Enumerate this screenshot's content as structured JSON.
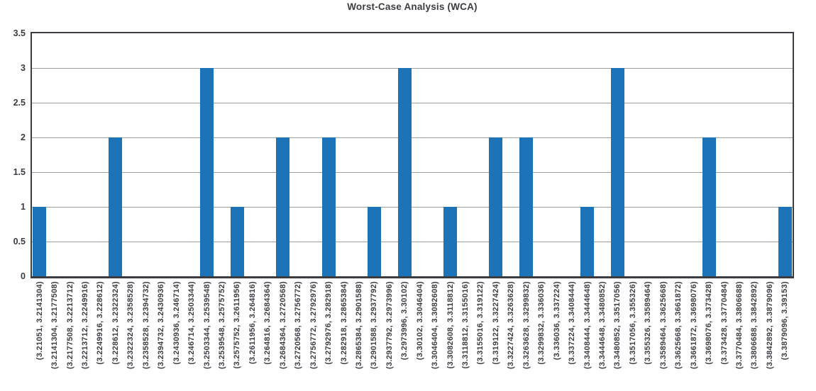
{
  "chart_data": {
    "type": "bar",
    "title": "Worst-Case Analysis (WCA)",
    "xlabel": "",
    "ylabel": "",
    "ylim": [
      0,
      3.5
    ],
    "ytick_labels": [
      "0",
      "0.5",
      "1",
      "1.5",
      "2",
      "2.5",
      "3",
      "3.5"
    ],
    "grid": true,
    "legend": "none",
    "bar_color": "#1d73b8",
    "gridline_color": "#9e9e9e",
    "axis_color": "#3b3c42",
    "text_color": "#3d3e44",
    "categories": [
      "(3.21051, 3.2141304)",
      "(3.2141304, 3.2177508)",
      "(3.2177508, 3.2213712)",
      "(3.2213712, 3.2249916)",
      "(3.2249916, 3.228612)",
      "(3.228612, 3.2322324)",
      "(3.2322324, 3.2358528)",
      "(3.2358528, 3.2394732)",
      "(3.2394732, 3.2430936)",
      "(3.2430936, 3.246714)",
      "(3.246714, 3.2503344)",
      "(3.2503344, 3.2539548)",
      "(3.2539548, 3.2575752)",
      "(3.2575752, 3.2611956)",
      "(3.2611956, 3.264816)",
      "(3.264816, 3.2684364)",
      "(3.2684364, 3.2720568)",
      "(3.2720568, 3.2756772)",
      "(3.2756772, 3.2792976)",
      "(3.2792976, 3.282918)",
      "(3.282918, 3.2865384)",
      "(3.2865384, 3.2901588)",
      "(3.2901588, 3.2937792)",
      "(3.2937792, 3.2973996)",
      "(3.2973996, 3.30102)",
      "(3.30102, 3.3046404)",
      "(3.3046404, 3.3082608)",
      "(3.3082608, 3.3118812)",
      "(3.3118812, 3.3155016)",
      "(3.3155016, 3.319122)",
      "(3.319122, 3.3227424)",
      "(3.3227424, 3.3263628)",
      "(3.3263628, 3.3299832)",
      "(3.3299832, 3.336036)",
      "(3.336036, 3.337224)",
      "(3.337224, 3.3408444)",
      "(3.3408444, 3.3444648)",
      "(3.3444648, 3.3480852)",
      "(3.3480852, 3.3517056)",
      "(3.3517056, 3.355326)",
      "(3.355326, 3.3589464)",
      "(3.3589464, 3.3625668)",
      "(3.3625668, 3.3661872)",
      "(3.3661872, 3.3698076)",
      "(3.3698076, 3.373428)",
      "(3.373428, 3.3770484)",
      "(3.3770484, 3.3806688)",
      "(3.3806688, 3.3842892)",
      "(3.3842892, 3.3879096)",
      "(3.3879096, 3.39153)"
    ],
    "values": [
      1,
      0,
      0,
      0,
      0,
      2,
      0,
      0,
      0,
      0,
      0,
      3,
      0,
      1,
      0,
      0,
      2,
      0,
      0,
      2,
      0,
      0,
      1,
      0,
      3,
      0,
      0,
      1,
      0,
      0,
      2,
      0,
      2,
      0,
      0,
      0,
      1,
      0,
      3,
      0,
      0,
      0,
      0,
      0,
      2,
      0,
      0,
      0,
      0,
      1
    ]
  }
}
